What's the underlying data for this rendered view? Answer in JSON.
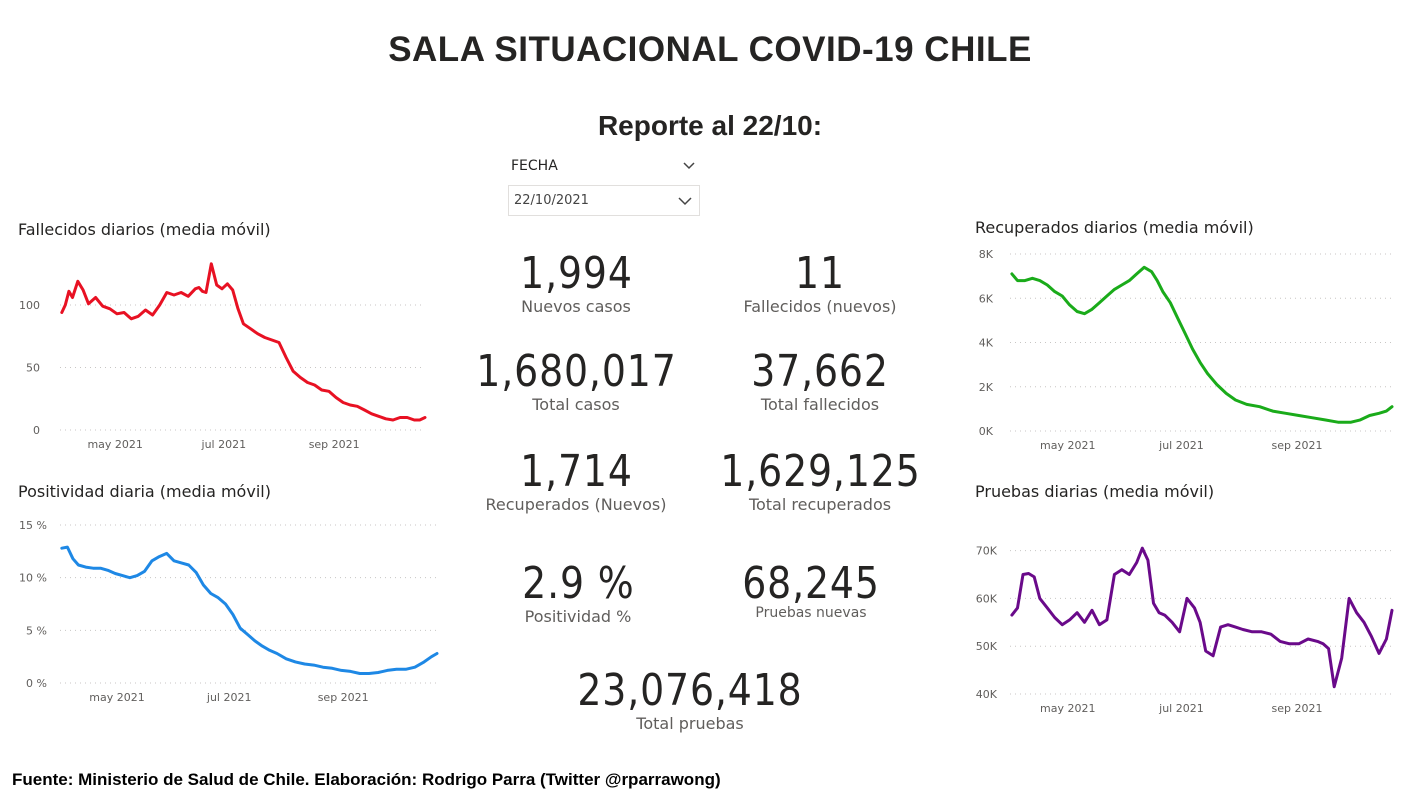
{
  "header": {
    "title": "SALA SITUACIONAL COVID-19 CHILE",
    "subtitle": "Reporte al 22/10:"
  },
  "slicer": {
    "label": "FECHA",
    "value": "22/10/2021"
  },
  "kpis": {
    "nuevos_casos": {
      "value": "1,994",
      "label": "Nuevos casos"
    },
    "fallecidos_nuevos": {
      "value": "11",
      "label": "Fallecidos (nuevos)"
    },
    "total_casos": {
      "value": "1,680,017",
      "label": "Total casos"
    },
    "total_fallecidos": {
      "value": "37,662",
      "label": "Total fallecidos"
    },
    "recuperados_nuevos": {
      "value": "1,714",
      "label": "Recuperados (Nuevos)"
    },
    "total_recuperados": {
      "value": "1,629,125",
      "label": "Total recuperados"
    },
    "positividad": {
      "value": "2.9 %",
      "label": "Positividad %"
    },
    "pruebas_nuevas": {
      "value": "68,245",
      "label": "Pruebas nuevas"
    },
    "total_pruebas": {
      "value": "23,076,418",
      "label": "Total pruebas"
    }
  },
  "footer": "Fuente: Ministerio de Salud de Chile. Elaboración: Rodrigo Parra (Twitter @rparrawong)",
  "chart_data": [
    {
      "id": "fallecidos",
      "type": "line",
      "title": "Fallecidos diarios (media móvil)",
      "color": "#e81123",
      "xlabel": "",
      "ylabel": "",
      "xlim": [
        "2021-03-31",
        "2021-10-22"
      ],
      "ylim": [
        0,
        140
      ],
      "yticks": [
        0,
        50,
        100
      ],
      "ytick_labels": [
        "0",
        "50",
        "100"
      ],
      "xticks": [
        "2021-05-01",
        "2021-07-01",
        "2021-09-01"
      ],
      "xtick_labels": [
        "may 2021",
        "jul 2021",
        "sep 2021"
      ],
      "grid": true,
      "x": [
        "2021-04-01",
        "2021-04-03",
        "2021-04-05",
        "2021-04-07",
        "2021-04-10",
        "2021-04-13",
        "2021-04-16",
        "2021-04-20",
        "2021-04-24",
        "2021-04-28",
        "2021-05-02",
        "2021-05-06",
        "2021-05-10",
        "2021-05-14",
        "2021-05-18",
        "2021-05-22",
        "2021-05-26",
        "2021-05-30",
        "2021-06-03",
        "2021-06-07",
        "2021-06-11",
        "2021-06-15",
        "2021-06-17",
        "2021-06-19",
        "2021-06-21",
        "2021-06-24",
        "2021-06-27",
        "2021-06-30",
        "2021-07-03",
        "2021-07-06",
        "2021-07-09",
        "2021-07-12",
        "2021-07-16",
        "2021-07-20",
        "2021-07-24",
        "2021-07-28",
        "2021-08-01",
        "2021-08-05",
        "2021-08-09",
        "2021-08-13",
        "2021-08-17",
        "2021-08-21",
        "2021-08-25",
        "2021-08-29",
        "2021-09-02",
        "2021-09-06",
        "2021-09-10",
        "2021-09-14",
        "2021-09-18",
        "2021-09-22",
        "2021-09-26",
        "2021-09-30",
        "2021-10-04",
        "2021-10-08",
        "2021-10-12",
        "2021-10-16",
        "2021-10-19",
        "2021-10-22"
      ],
      "values": [
        94,
        100,
        111,
        106,
        119,
        112,
        101,
        106,
        99,
        97,
        93,
        94,
        89,
        91,
        96,
        92,
        100,
        110,
        108,
        110,
        107,
        113,
        114,
        111,
        110,
        133,
        116,
        113,
        117,
        112,
        97,
        85,
        81,
        77,
        74,
        72,
        70,
        58,
        47,
        42,
        38,
        36,
        32,
        31,
        26,
        22,
        20,
        19,
        16,
        13,
        11,
        9,
        8,
        10,
        10,
        8,
        8,
        10
      ]
    },
    {
      "id": "positividad",
      "type": "line",
      "title": "Positividad diaria (media móvil)",
      "color": "#1e88e5",
      "xlabel": "",
      "ylabel": "",
      "xlim": [
        "2021-03-31",
        "2021-10-22"
      ],
      "ylim": [
        0,
        15
      ],
      "yticks": [
        0,
        5,
        10,
        15
      ],
      "ytick_labels": [
        "0 %",
        "5 %",
        "10 %",
        "15 %"
      ],
      "xticks": [
        "2021-05-01",
        "2021-07-01",
        "2021-09-01"
      ],
      "xtick_labels": [
        "may 2021",
        "jul 2021",
        "sep 2021"
      ],
      "grid": true,
      "x": [
        "2021-04-01",
        "2021-04-04",
        "2021-04-07",
        "2021-04-10",
        "2021-04-14",
        "2021-04-18",
        "2021-04-22",
        "2021-04-26",
        "2021-04-30",
        "2021-05-04",
        "2021-05-08",
        "2021-05-12",
        "2021-05-16",
        "2021-05-20",
        "2021-05-24",
        "2021-05-28",
        "2021-06-01",
        "2021-06-05",
        "2021-06-09",
        "2021-06-13",
        "2021-06-17",
        "2021-06-21",
        "2021-06-25",
        "2021-06-29",
        "2021-07-03",
        "2021-07-07",
        "2021-07-11",
        "2021-07-15",
        "2021-07-19",
        "2021-07-23",
        "2021-07-27",
        "2021-08-01",
        "2021-08-06",
        "2021-08-11",
        "2021-08-16",
        "2021-08-21",
        "2021-08-26",
        "2021-08-31",
        "2021-09-05",
        "2021-09-10",
        "2021-09-15",
        "2021-09-20",
        "2021-09-25",
        "2021-09-30",
        "2021-10-05",
        "2021-10-10",
        "2021-10-15",
        "2021-10-19",
        "2021-10-22"
      ],
      "values": [
        12.8,
        12.9,
        11.8,
        11.2,
        11.0,
        10.9,
        10.9,
        10.7,
        10.4,
        10.2,
        10.0,
        10.2,
        10.6,
        11.6,
        12.0,
        12.3,
        11.6,
        11.4,
        11.2,
        10.5,
        9.3,
        8.5,
        8.1,
        7.5,
        6.5,
        5.2,
        4.6,
        4.0,
        3.5,
        3.1,
        2.8,
        2.3,
        2.0,
        1.8,
        1.7,
        1.5,
        1.4,
        1.2,
        1.1,
        0.9,
        0.9,
        1.0,
        1.2,
        1.3,
        1.3,
        1.5,
        2.0,
        2.5,
        2.8
      ]
    },
    {
      "id": "recuperados",
      "type": "line",
      "title": "Recuperados diarios (media móvil)",
      "color": "#1aab1a",
      "xlabel": "",
      "ylabel": "",
      "xlim": [
        "2021-03-31",
        "2021-10-22"
      ],
      "ylim": [
        0,
        8000
      ],
      "yticks": [
        0,
        2000,
        4000,
        6000,
        8000
      ],
      "ytick_labels": [
        "0K",
        "2K",
        "4K",
        "6K",
        "8K"
      ],
      "xticks": [
        "2021-05-01",
        "2021-07-01",
        "2021-09-01"
      ],
      "xtick_labels": [
        "may 2021",
        "jul 2021",
        "sep 2021"
      ],
      "grid": true,
      "x": [
        "2021-04-01",
        "2021-04-04",
        "2021-04-08",
        "2021-04-12",
        "2021-04-16",
        "2021-04-20",
        "2021-04-24",
        "2021-04-28",
        "2021-05-02",
        "2021-05-06",
        "2021-05-10",
        "2021-05-14",
        "2021-05-18",
        "2021-05-22",
        "2021-05-26",
        "2021-05-30",
        "2021-06-03",
        "2021-06-07",
        "2021-06-11",
        "2021-06-15",
        "2021-06-18",
        "2021-06-21",
        "2021-06-25",
        "2021-06-29",
        "2021-07-03",
        "2021-07-07",
        "2021-07-11",
        "2021-07-15",
        "2021-07-20",
        "2021-07-25",
        "2021-07-30",
        "2021-08-05",
        "2021-08-12",
        "2021-08-19",
        "2021-08-26",
        "2021-09-02",
        "2021-09-09",
        "2021-09-16",
        "2021-09-23",
        "2021-09-30",
        "2021-10-05",
        "2021-10-10",
        "2021-10-15",
        "2021-10-19",
        "2021-10-22"
      ],
      "values": [
        7100,
        6800,
        6800,
        6900,
        6800,
        6600,
        6300,
        6100,
        5700,
        5400,
        5300,
        5500,
        5800,
        6100,
        6400,
        6600,
        6800,
        7100,
        7400,
        7200,
        6800,
        6300,
        5800,
        5100,
        4400,
        3700,
        3100,
        2600,
        2100,
        1700,
        1400,
        1200,
        1100,
        900,
        800,
        700,
        600,
        500,
        400,
        400,
        500,
        700,
        800,
        900,
        1100
      ]
    },
    {
      "id": "pruebas",
      "type": "line",
      "title": "Pruebas diarias (media móvil)",
      "color": "#6a0a8a",
      "xlabel": "",
      "ylabel": "",
      "xlim": [
        "2021-03-31",
        "2021-10-22"
      ],
      "ylim": [
        40000,
        72000
      ],
      "yticks": [
        40000,
        50000,
        60000,
        70000
      ],
      "ytick_labels": [
        "40K",
        "50K",
        "60K",
        "70K"
      ],
      "xticks": [
        "2021-05-01",
        "2021-07-01",
        "2021-09-01"
      ],
      "xtick_labels": [
        "may 2021",
        "jul 2021",
        "sep 2021"
      ],
      "grid": true,
      "x": [
        "2021-04-01",
        "2021-04-04",
        "2021-04-07",
        "2021-04-10",
        "2021-04-13",
        "2021-04-16",
        "2021-04-20",
        "2021-04-24",
        "2021-04-28",
        "2021-05-02",
        "2021-05-06",
        "2021-05-10",
        "2021-05-14",
        "2021-05-18",
        "2021-05-22",
        "2021-05-26",
        "2021-05-30",
        "2021-06-03",
        "2021-06-07",
        "2021-06-10",
        "2021-06-13",
        "2021-06-16",
        "2021-06-19",
        "2021-06-22",
        "2021-06-26",
        "2021-06-30",
        "2021-07-04",
        "2021-07-08",
        "2021-07-11",
        "2021-07-14",
        "2021-07-18",
        "2021-07-22",
        "2021-07-26",
        "2021-07-30",
        "2021-08-03",
        "2021-08-08",
        "2021-08-13",
        "2021-08-18",
        "2021-08-23",
        "2021-08-28",
        "2021-09-02",
        "2021-09-07",
        "2021-09-12",
        "2021-09-15",
        "2021-09-18",
        "2021-09-21",
        "2021-09-25",
        "2021-09-29",
        "2021-10-03",
        "2021-10-07",
        "2021-10-11",
        "2021-10-15",
        "2021-10-19",
        "2021-10-22"
      ],
      "values": [
        56500,
        58000,
        65000,
        65200,
        64500,
        60000,
        58000,
        56000,
        54500,
        55500,
        57000,
        55000,
        57500,
        54500,
        55500,
        65000,
        66000,
        65000,
        67500,
        70500,
        68000,
        59000,
        57000,
        56500,
        55000,
        53000,
        60000,
        58000,
        55000,
        49000,
        48000,
        54000,
        54500,
        54000,
        53500,
        53000,
        53000,
        52500,
        51000,
        50500,
        50500,
        51500,
        51000,
        50500,
        49500,
        41500,
        47500,
        60000,
        57000,
        55000,
        52000,
        48500,
        51500,
        57500
      ]
    }
  ]
}
